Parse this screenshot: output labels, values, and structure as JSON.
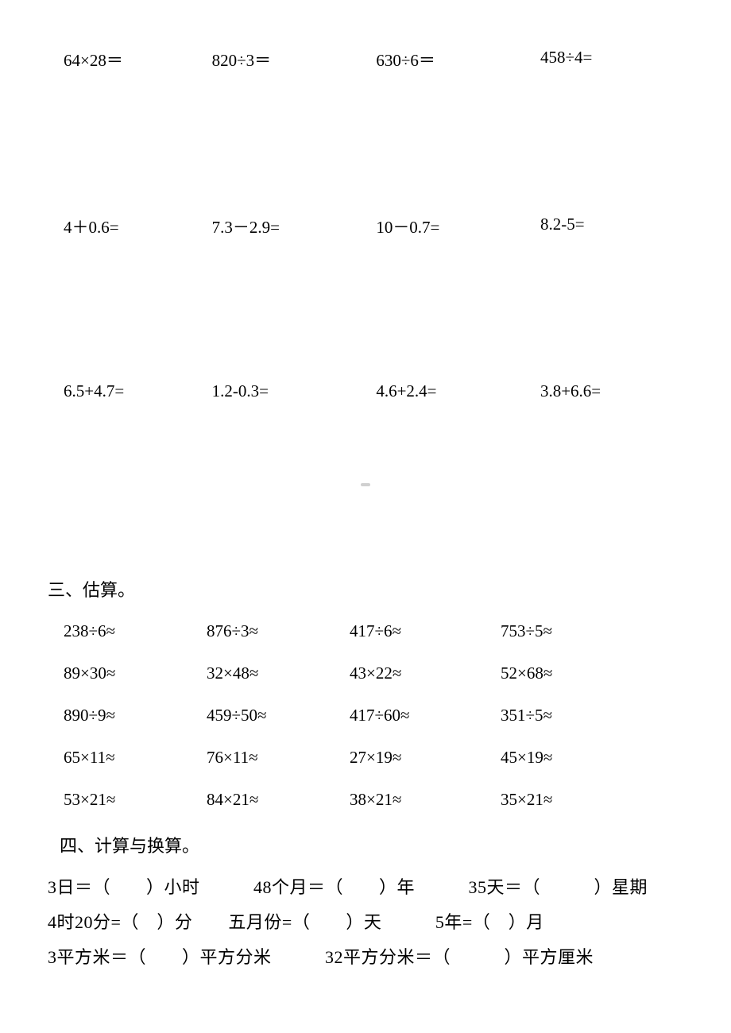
{
  "colors": {
    "background": "#ffffff",
    "text": "#000000"
  },
  "typography": {
    "font_family": "SimSun",
    "main_fontsize": 21,
    "title_fontsize": 22
  },
  "calc_rows": [
    {
      "c1": "64×28＝",
      "c2": "820÷3＝",
      "c3": "630÷6＝",
      "c4": "458÷4="
    },
    {
      "c1": "4＋0.6=",
      "c2": "7.3－2.9=",
      "c3": "10－0.7=",
      "c4": "8.2-5="
    },
    {
      "c1": "6.5+4.7=",
      "c2": "1.2-0.3=",
      "c3": "4.6+2.4=",
      "c4": "3.8+6.6="
    }
  ],
  "section3_title": "三、估算。",
  "est_rows": [
    {
      "c1": "238÷6≈",
      "c2": "876÷3≈",
      "c3": "417÷6≈",
      "c4": "753÷5≈"
    },
    {
      "c1": "89×30≈",
      "c2": "32×48≈",
      "c3": "43×22≈",
      "c4": "52×68≈"
    },
    {
      "c1": "890÷9≈",
      "c2": "459÷50≈",
      "c3": "417÷60≈",
      "c4": "351÷5≈"
    },
    {
      "c1": "65×11≈",
      "c2": "76×11≈",
      "c3": "27×19≈",
      "c4": "45×19≈"
    },
    {
      "c1": "53×21≈",
      "c2": "84×21≈",
      "c3": "38×21≈",
      "c4": "35×21≈"
    }
  ],
  "section4_title": "四、计算与换算。",
  "conv_lines": [
    "3日＝（　　）小时　　　48个月＝（　　）年　　　35天＝（　　　）星期",
    "4时20分=（　）分　　五月份=（　　）天　　　5年=（　）月",
    "3平方米＝（　　）平方分米　　　32平方分米＝（　　　）平方厘米"
  ]
}
